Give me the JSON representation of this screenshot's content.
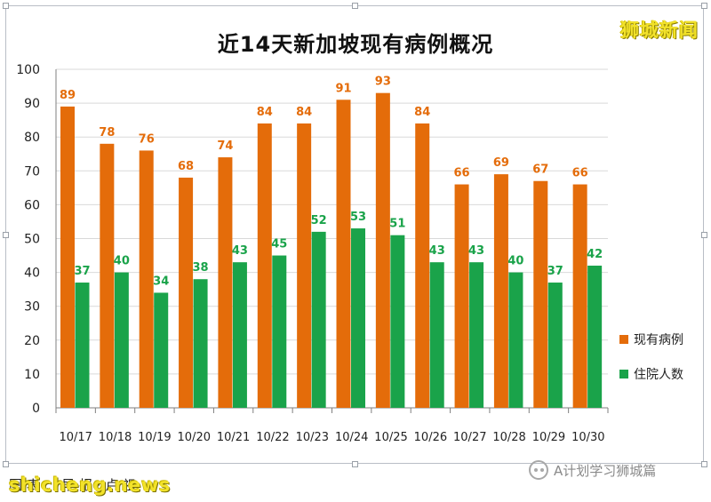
{
  "brand": "狮城新闻",
  "source_text": "图 表 ： 早 报 · 卢 祖",
  "watermark": "shicheng.news",
  "wechat_account": "A计划学习狮城篇",
  "colors": {
    "series_current": "#e46c0a",
    "series_hospital": "#1aa34a",
    "label_current": "#e46c0a",
    "label_hospital": "#1aa34a",
    "grid": "#d9d9d9",
    "axis": "#7f7f7f"
  },
  "chart_data": {
    "type": "bar",
    "title": "近14天新加坡现有病例概况",
    "xlabel": "",
    "ylabel": "",
    "categories": [
      "10/17",
      "10/18",
      "10/19",
      "10/20",
      "10/21",
      "10/22",
      "10/23",
      "10/24",
      "10/25",
      "10/26",
      "10/27",
      "10/28",
      "10/29",
      "10/30"
    ],
    "series": [
      {
        "name": "现有病例",
        "values": [
          89,
          78,
          76,
          68,
          74,
          84,
          84,
          91,
          93,
          84,
          66,
          69,
          67,
          66
        ]
      },
      {
        "name": "住院人数",
        "values": [
          37,
          40,
          34,
          38,
          43,
          45,
          52,
          53,
          51,
          43,
          43,
          40,
          37,
          42
        ]
      }
    ],
    "ylim": [
      0,
      100
    ],
    "yticks": [
      0,
      10,
      20,
      30,
      40,
      50,
      60,
      70,
      80,
      90,
      100
    ],
    "grid": true,
    "legend_position": "right"
  }
}
